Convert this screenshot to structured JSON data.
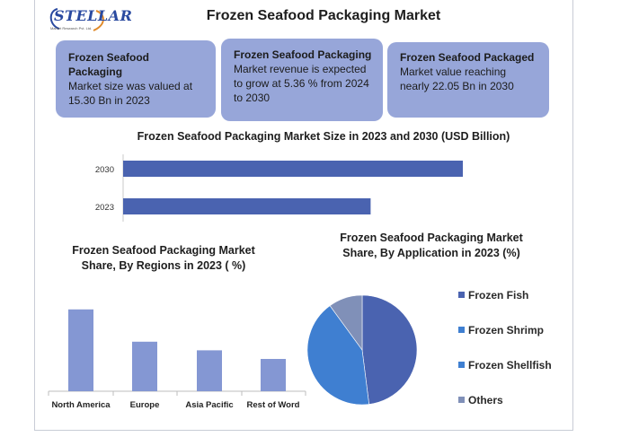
{
  "header": {
    "logo_text": "STELLAR",
    "logo_tagline": "Market Research Pvt. Ltd.",
    "title": "Frozen Seafood Packaging Market"
  },
  "cards": [
    {
      "title": "Frozen Seafood Packaging",
      "body": "Market size was valued at 15.30 Bn in 2023"
    },
    {
      "title": "Frozen Seafood Packaging",
      "body": "Market revenue is expected to grow at 5.36 % from 2024 to 2030"
    },
    {
      "title": "Frozen Seafood Packaged",
      "body": "Market value reaching nearly 22.05 Bn in 2030"
    }
  ],
  "colors": {
    "card_bg": "#97a6d9",
    "bar": "#4a63b0",
    "column": "#8497d3",
    "frozen_fish": "#4a63b0",
    "frozen_shrimp": "#3f7fd1",
    "frozen_shellfish": "#3f7fd1",
    "others": "#8090b8"
  },
  "chart_data": [
    {
      "type": "bar",
      "orientation": "horizontal",
      "title": "Frozen Seafood Packaging Market Size in 2023 and 2030 (USD Billion)",
      "categories": [
        "2030",
        "2023"
      ],
      "values": [
        22.05,
        15.3
      ],
      "xlim": [
        0,
        25
      ],
      "grid": false
    },
    {
      "type": "bar",
      "title": "Frozen Seafood Packaging Market Share, By Regions in 2023 ( %)",
      "categories": [
        "North America",
        "Europe",
        "Asia Pacific",
        "Rest of Word"
      ],
      "values": [
        38,
        23,
        19,
        15
      ],
      "ylim": [
        0,
        45
      ],
      "grid": false
    },
    {
      "type": "pie",
      "title": "Frozen Seafood Packaging Market Share, By Application in 2023 (%)",
      "labels": [
        "Frozen Fish",
        "Frozen Shrimp",
        "Frozen Shellfish",
        "Others"
      ],
      "values": [
        48,
        42,
        0,
        10
      ],
      "legend_position": "right"
    }
  ]
}
